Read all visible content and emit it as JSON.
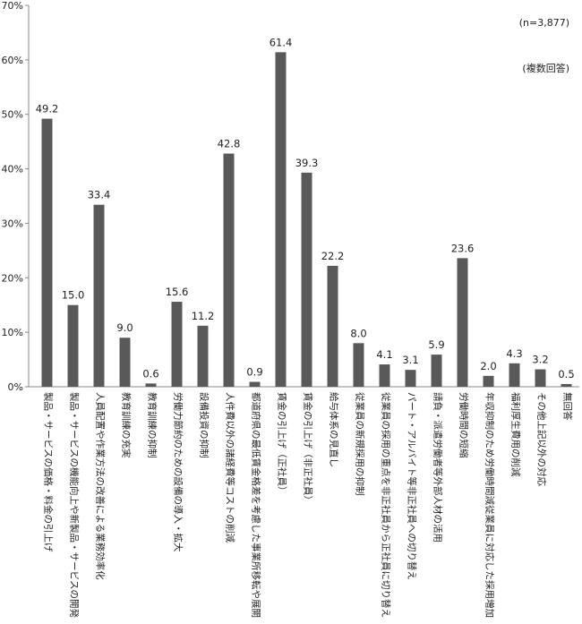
{
  "chart_data": {
    "type": "bar",
    "title": "",
    "xlabel": "",
    "ylabel": "",
    "ylim": [
      0,
      70
    ],
    "ytick_step": 10,
    "ytick_format": "{v}%",
    "grid": false,
    "bar_color": "#595959",
    "notes": [
      "(n=3,877)",
      "(複数回答)"
    ],
    "categories": [
      "製品・サービスの価格・料金の引上げ",
      "製品・サービスの機能向上や新製品・サービスの開発",
      "人員配置や作業方法の改善による業務効率化",
      "教育訓練の充実",
      "教育訓練の抑制",
      "労働力節約のための設備の導入・拡大",
      "設備投資の抑制",
      "人件費以外の諸経費等コストの削減",
      "都道府県の最低賃金格差を考慮した事業所移転や展開",
      "賃金の引上げ（正社員）",
      "賃金の引上げ（非正社員）",
      "給与体系の見直し",
      "従業員の新規採用の抑制",
      "従業員の採用の重点を非正社員から正社員に切り替え",
      "パート・アルバイト等非正社員への切り替え",
      "請負・派遣労働者等外部人材の活用",
      "労働時間の短縮",
      "年収抑制のため労働時間減従業員に対応した採用増加",
      "福利厚生費用の削減",
      "その他上記以外の対応",
      "無回答"
    ],
    "values": [
      49.2,
      15.0,
      33.4,
      9.0,
      0.6,
      15.6,
      11.2,
      42.8,
      0.9,
      61.4,
      39.3,
      22.2,
      8.0,
      4.1,
      3.1,
      5.9,
      23.6,
      2.0,
      4.3,
      3.2,
      0.5
    ],
    "value_labels": [
      "49.2",
      "15.0",
      "33.4",
      "9.0",
      "0.6",
      "15.6",
      "11.2",
      "42.8",
      "0.9",
      "61.4",
      "39.3",
      "22.2",
      "8.0",
      "4.1",
      "3.1",
      "5.9",
      "23.6",
      "2.0",
      "4.3",
      "3.2",
      "0.5"
    ]
  }
}
